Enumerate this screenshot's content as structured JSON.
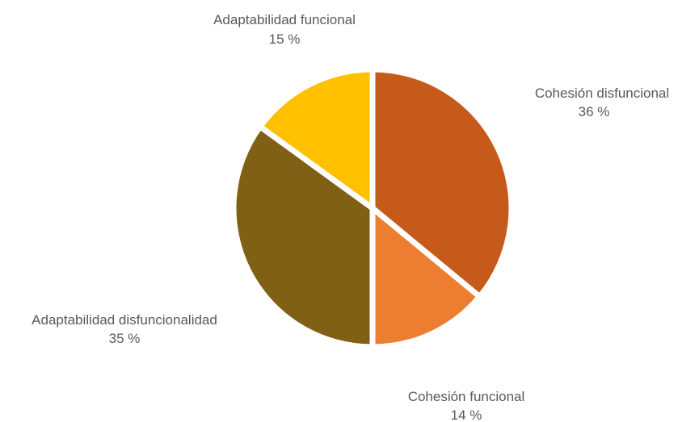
{
  "chart_data": {
    "type": "pie",
    "slices": [
      {
        "label": "Cohesión disfuncional",
        "value": 36,
        "value_label": "36 %",
        "color": "#C55A1A"
      },
      {
        "label": "Cohesión funcional",
        "value": 14,
        "value_label": "14 %",
        "color": "#ED7D31"
      },
      {
        "label": "Adaptabilidad disfuncionalidad",
        "value": 35,
        "value_label": "35 %",
        "color": "#7F6014"
      },
      {
        "label": "Adaptabilidad funcional",
        "value": 15,
        "value_label": "15 %",
        "color": "#FFC000"
      }
    ],
    "start_angle": "12 o'clock, clockwise",
    "legend": "none"
  }
}
